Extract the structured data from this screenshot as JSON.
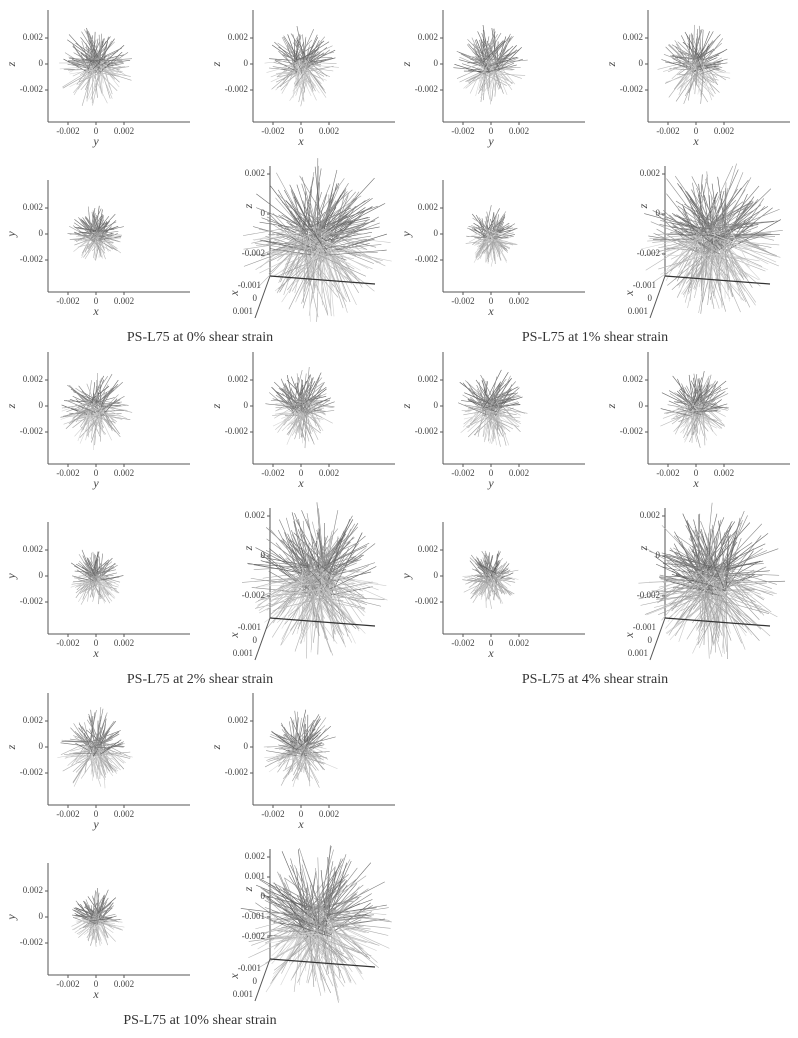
{
  "figures": [
    {
      "caption": "PS-L75 at 0% shear strain",
      "panels": [
        {
          "kind": "2d",
          "xlabel": "y",
          "ylabel": "z",
          "xticks": [
            "-0.002",
            "0",
            "0.002"
          ],
          "yticks": [
            "0.002",
            "0",
            "-0.002"
          ]
        },
        {
          "kind": "2d",
          "xlabel": "x",
          "ylabel": "z",
          "xticks": [
            "-0.002",
            "0",
            "0.002"
          ],
          "yticks": [
            "0.002",
            "0",
            "-0.002"
          ]
        },
        {
          "kind": "2d",
          "xlabel": "x",
          "ylabel": "y",
          "xticks": [
            "-0.002",
            "0",
            "0.002"
          ],
          "yticks": [
            "0.002",
            "0",
            "-0.002"
          ]
        },
        {
          "kind": "3d",
          "xlabel": "x",
          "ylabel": "z",
          "xticks": [
            "-0.001",
            "0",
            "0.001"
          ],
          "yticks": [
            "0.002",
            "0",
            "-0.002"
          ]
        }
      ]
    },
    {
      "caption": "PS-L75 at 1% shear strain",
      "panels": [
        {
          "kind": "2d",
          "xlabel": "y",
          "ylabel": "z",
          "xticks": [
            "-0.002",
            "0",
            "0.002"
          ],
          "yticks": [
            "0.002",
            "0",
            "-0.002"
          ]
        },
        {
          "kind": "2d",
          "xlabel": "x",
          "ylabel": "z",
          "xticks": [
            "-0.002",
            "0",
            "0.002"
          ],
          "yticks": [
            "0.002",
            "0",
            "-0.002"
          ]
        },
        {
          "kind": "2d",
          "xlabel": "x",
          "ylabel": "y",
          "xticks": [
            "-0.002",
            "0",
            "0.002"
          ],
          "yticks": [
            "0.002",
            "0",
            "-0.002"
          ]
        },
        {
          "kind": "3d",
          "xlabel": "x",
          "ylabel": "z",
          "xticks": [
            "-0.001",
            "0",
            "0.001"
          ],
          "yticks": [
            "0.002",
            "0",
            "-0.002"
          ]
        }
      ]
    },
    {
      "caption": "PS-L75 at 2% shear strain",
      "panels": [
        {
          "kind": "2d",
          "xlabel": "y",
          "ylabel": "z",
          "xticks": [
            "-0.002",
            "0",
            "0.002"
          ],
          "yticks": [
            "0.002",
            "0",
            "-0.002"
          ]
        },
        {
          "kind": "2d",
          "xlabel": "x",
          "ylabel": "z",
          "xticks": [
            "-0.002",
            "0",
            "0.002"
          ],
          "yticks": [
            "0.002",
            "0",
            "-0.002"
          ]
        },
        {
          "kind": "2d",
          "xlabel": "x",
          "ylabel": "y",
          "xticks": [
            "-0.002",
            "0",
            "0.002"
          ],
          "yticks": [
            "0.002",
            "0",
            "-0.002"
          ]
        },
        {
          "kind": "3d",
          "xlabel": "x",
          "ylabel": "z",
          "xticks": [
            "-0.001",
            "0",
            "0.001"
          ],
          "yticks": [
            "0.002",
            "0",
            "-0.002"
          ]
        }
      ]
    },
    {
      "caption": "PS-L75 at 4% shear strain",
      "panels": [
        {
          "kind": "2d",
          "xlabel": "y",
          "ylabel": "z",
          "xticks": [
            "-0.002",
            "0",
            "0.002"
          ],
          "yticks": [
            "0.002",
            "0",
            "-0.002"
          ]
        },
        {
          "kind": "2d",
          "xlabel": "x",
          "ylabel": "z",
          "xticks": [
            "-0.002",
            "0",
            "0.002"
          ],
          "yticks": [
            "0.002",
            "0",
            "-0.002"
          ]
        },
        {
          "kind": "2d",
          "xlabel": "x",
          "ylabel": "y",
          "xticks": [
            "-0.002",
            "0",
            "0.002"
          ],
          "yticks": [
            "0.002",
            "0",
            "-0.002"
          ]
        },
        {
          "kind": "3d",
          "xlabel": "x",
          "ylabel": "z",
          "xticks": [
            "-0.001",
            "0",
            "0.001"
          ],
          "yticks": [
            "0.002",
            "0",
            "-0.002"
          ]
        }
      ]
    },
    {
      "caption": "PS-L75 at 10% shear strain",
      "panels": [
        {
          "kind": "2d",
          "xlabel": "y",
          "ylabel": "z",
          "xticks": [
            "-0.002",
            "0",
            "0.002"
          ],
          "yticks": [
            "0.002",
            "0",
            "-0.002"
          ]
        },
        {
          "kind": "2d",
          "xlabel": "x",
          "ylabel": "z",
          "xticks": [
            "-0.002",
            "0",
            "0.002"
          ],
          "yticks": [
            "0.002",
            "0",
            "-0.002"
          ]
        },
        {
          "kind": "2d",
          "xlabel": "x",
          "ylabel": "y",
          "xticks": [
            "-0.002",
            "0",
            "0.002"
          ],
          "yticks": [
            "0.002",
            "0",
            "-0.002"
          ]
        },
        {
          "kind": "3d",
          "xlabel": "x",
          "ylabel": "z",
          "xticks": [
            "-0.001",
            "0",
            "0.001"
          ],
          "yticks": [
            "0.002",
            "0.001",
            "0",
            "-0.001",
            "-0.002"
          ]
        }
      ]
    }
  ]
}
